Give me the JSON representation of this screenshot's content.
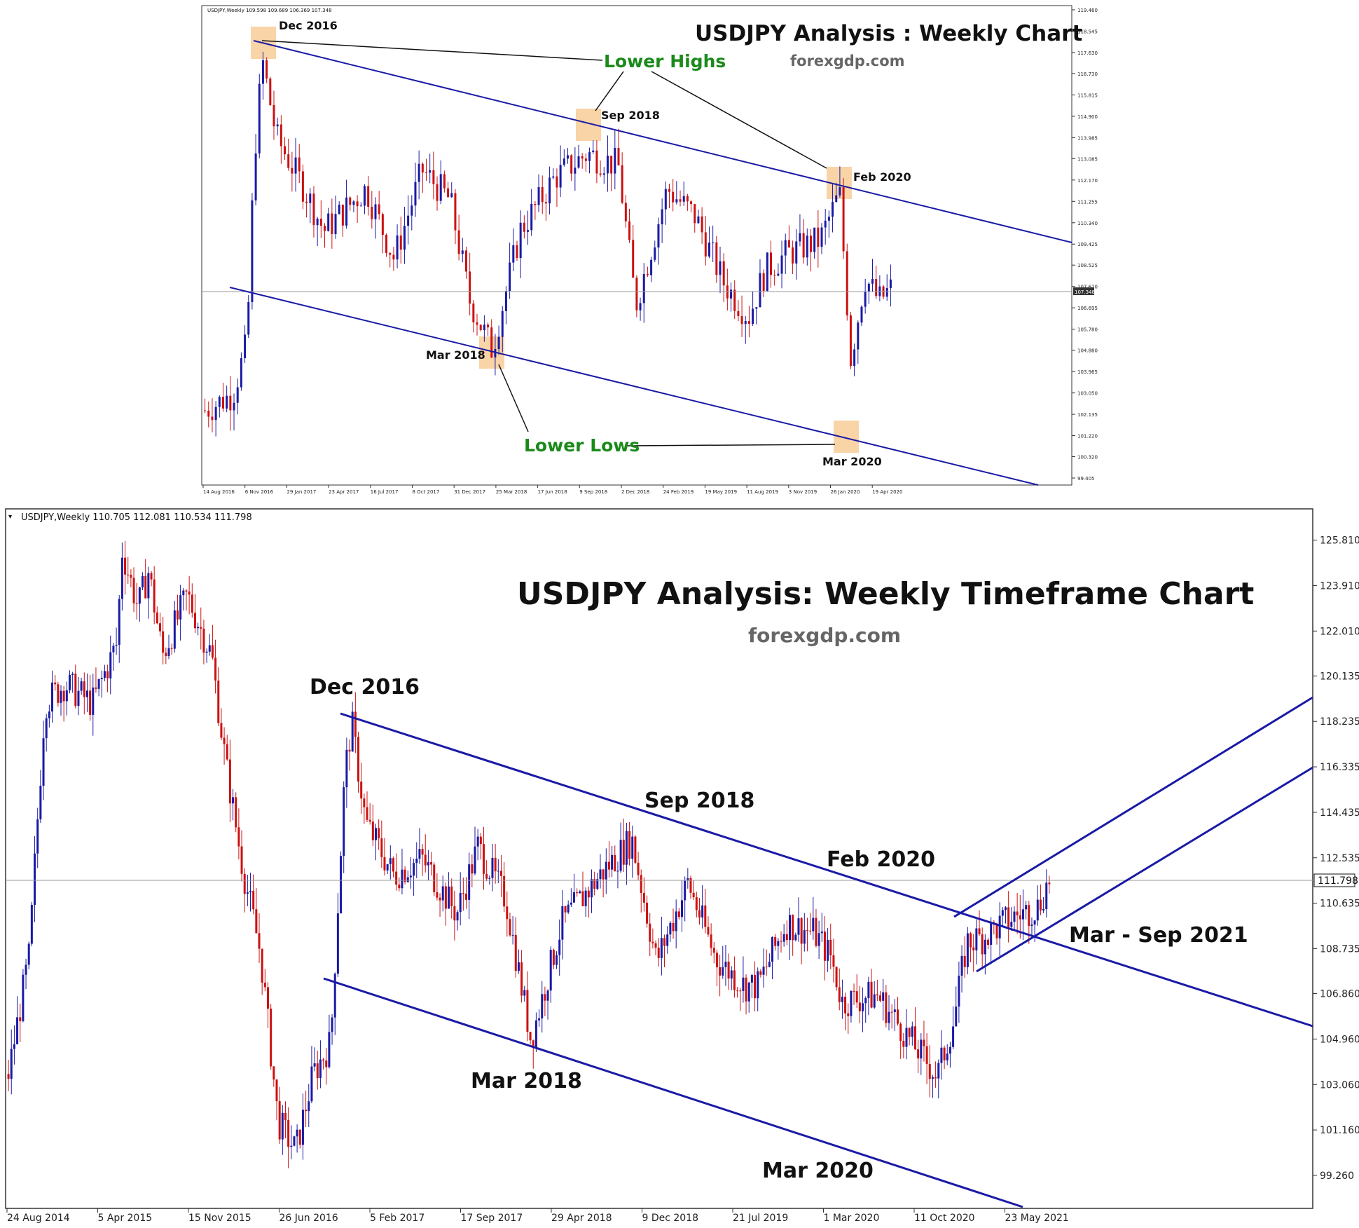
{
  "colors": {
    "bull": "#1a1aa6",
    "bear": "#cc1111",
    "trendline": "#1a1aa6",
    "highlight": "#f7c58a",
    "green_label": "#1a8a1a",
    "subtitle": "#666666",
    "price_tag_bg": "#ffffff"
  },
  "chart_data": [
    {
      "type": "candlestick",
      "title": "USDJPY Analysis : Weekly Chart",
      "subtitle": "forexgdp.com",
      "header": "USDJPY,Weekly 109.598 109.689 106.369 107.348",
      "current_price": "107.348",
      "y_ticks": [
        "119.460",
        "118.545",
        "117.630",
        "116.730",
        "115.815",
        "114.900",
        "113.985",
        "113.085",
        "112.170",
        "111.255",
        "110.340",
        "109.425",
        "108.525",
        "107.610",
        "106.695",
        "105.780",
        "104.880",
        "103.965",
        "103.050",
        "102.135",
        "101.220",
        "100.320",
        "99.405"
      ],
      "x_ticks": [
        "14 Aug 2016",
        "6 Nov 2016",
        "29 Jan 2017",
        "23 Apr 2017",
        "16 Jul 2017",
        "8 Oct 2017",
        "31 Dec 2017",
        "25 Mar 2018",
        "17 Jun 2018",
        "9 Sep 2018",
        "2 Dec 2018",
        "24 Feb 2019",
        "19 May 2019",
        "11 Aug 2019",
        "3 Nov 2019",
        "26 Jan 2020",
        "19 Apr 2020"
      ],
      "ylim": [
        99.405,
        119.46
      ],
      "labels": [
        "Dec 2016",
        "Sep 2018",
        "Feb 2020",
        "Mar 2018",
        "Mar 2020",
        "Lower Highs",
        "Lower Lows"
      ],
      "key_points": [
        {
          "label": "Dec 2016",
          "price": 118.5
        },
        {
          "label": "Sep 2018",
          "price": 114.5
        },
        {
          "label": "Feb 2020",
          "price": 112.2
        },
        {
          "label": "Mar 2018",
          "price": 104.6
        },
        {
          "label": "Mar 2020",
          "price": 101.2
        }
      ]
    },
    {
      "type": "candlestick",
      "title": "USDJPY Analysis: Weekly Timeframe Chart",
      "subtitle": "forexgdp.com",
      "header": "USDJPY,Weekly 110.705 112.081 110.534 111.798",
      "current_price": "111.798",
      "y_ticks": [
        "125.810",
        "123.910",
        "122.010",
        "120.135",
        "118.235",
        "116.335",
        "114.435",
        "112.535",
        "110.635",
        "108.735",
        "106.860",
        "104.960",
        "103.060",
        "101.160",
        "99.260"
      ],
      "x_ticks": [
        "24 Aug 2014",
        "5 Apr 2015",
        "15 Nov 2015",
        "26 Jun 2016",
        "5 Feb 2017",
        "17 Sep 2017",
        "29 Apr 2018",
        "9 Dec 2018",
        "21 Jul 2019",
        "1 Mar 2020",
        "11 Oct 2020",
        "23 May 2021"
      ],
      "ylim": [
        98.0,
        127.0
      ],
      "labels": [
        "Dec 2016",
        "Sep 2018",
        "Feb 2020",
        "Mar 2018",
        "Mar 2020",
        "Mar - Sep 2021"
      ],
      "key_points": [
        {
          "label": "Dec 2016",
          "price": 118.6
        },
        {
          "label": "Sep 2018",
          "price": 114.5
        },
        {
          "label": "Feb 2020",
          "price": 112.2
        },
        {
          "label": "Mar 2018",
          "price": 104.6
        },
        {
          "label": "Mar 2020",
          "price": 101.2
        },
        {
          "label": "Mar - Sep 2021",
          "price": 111.8
        }
      ]
    }
  ]
}
